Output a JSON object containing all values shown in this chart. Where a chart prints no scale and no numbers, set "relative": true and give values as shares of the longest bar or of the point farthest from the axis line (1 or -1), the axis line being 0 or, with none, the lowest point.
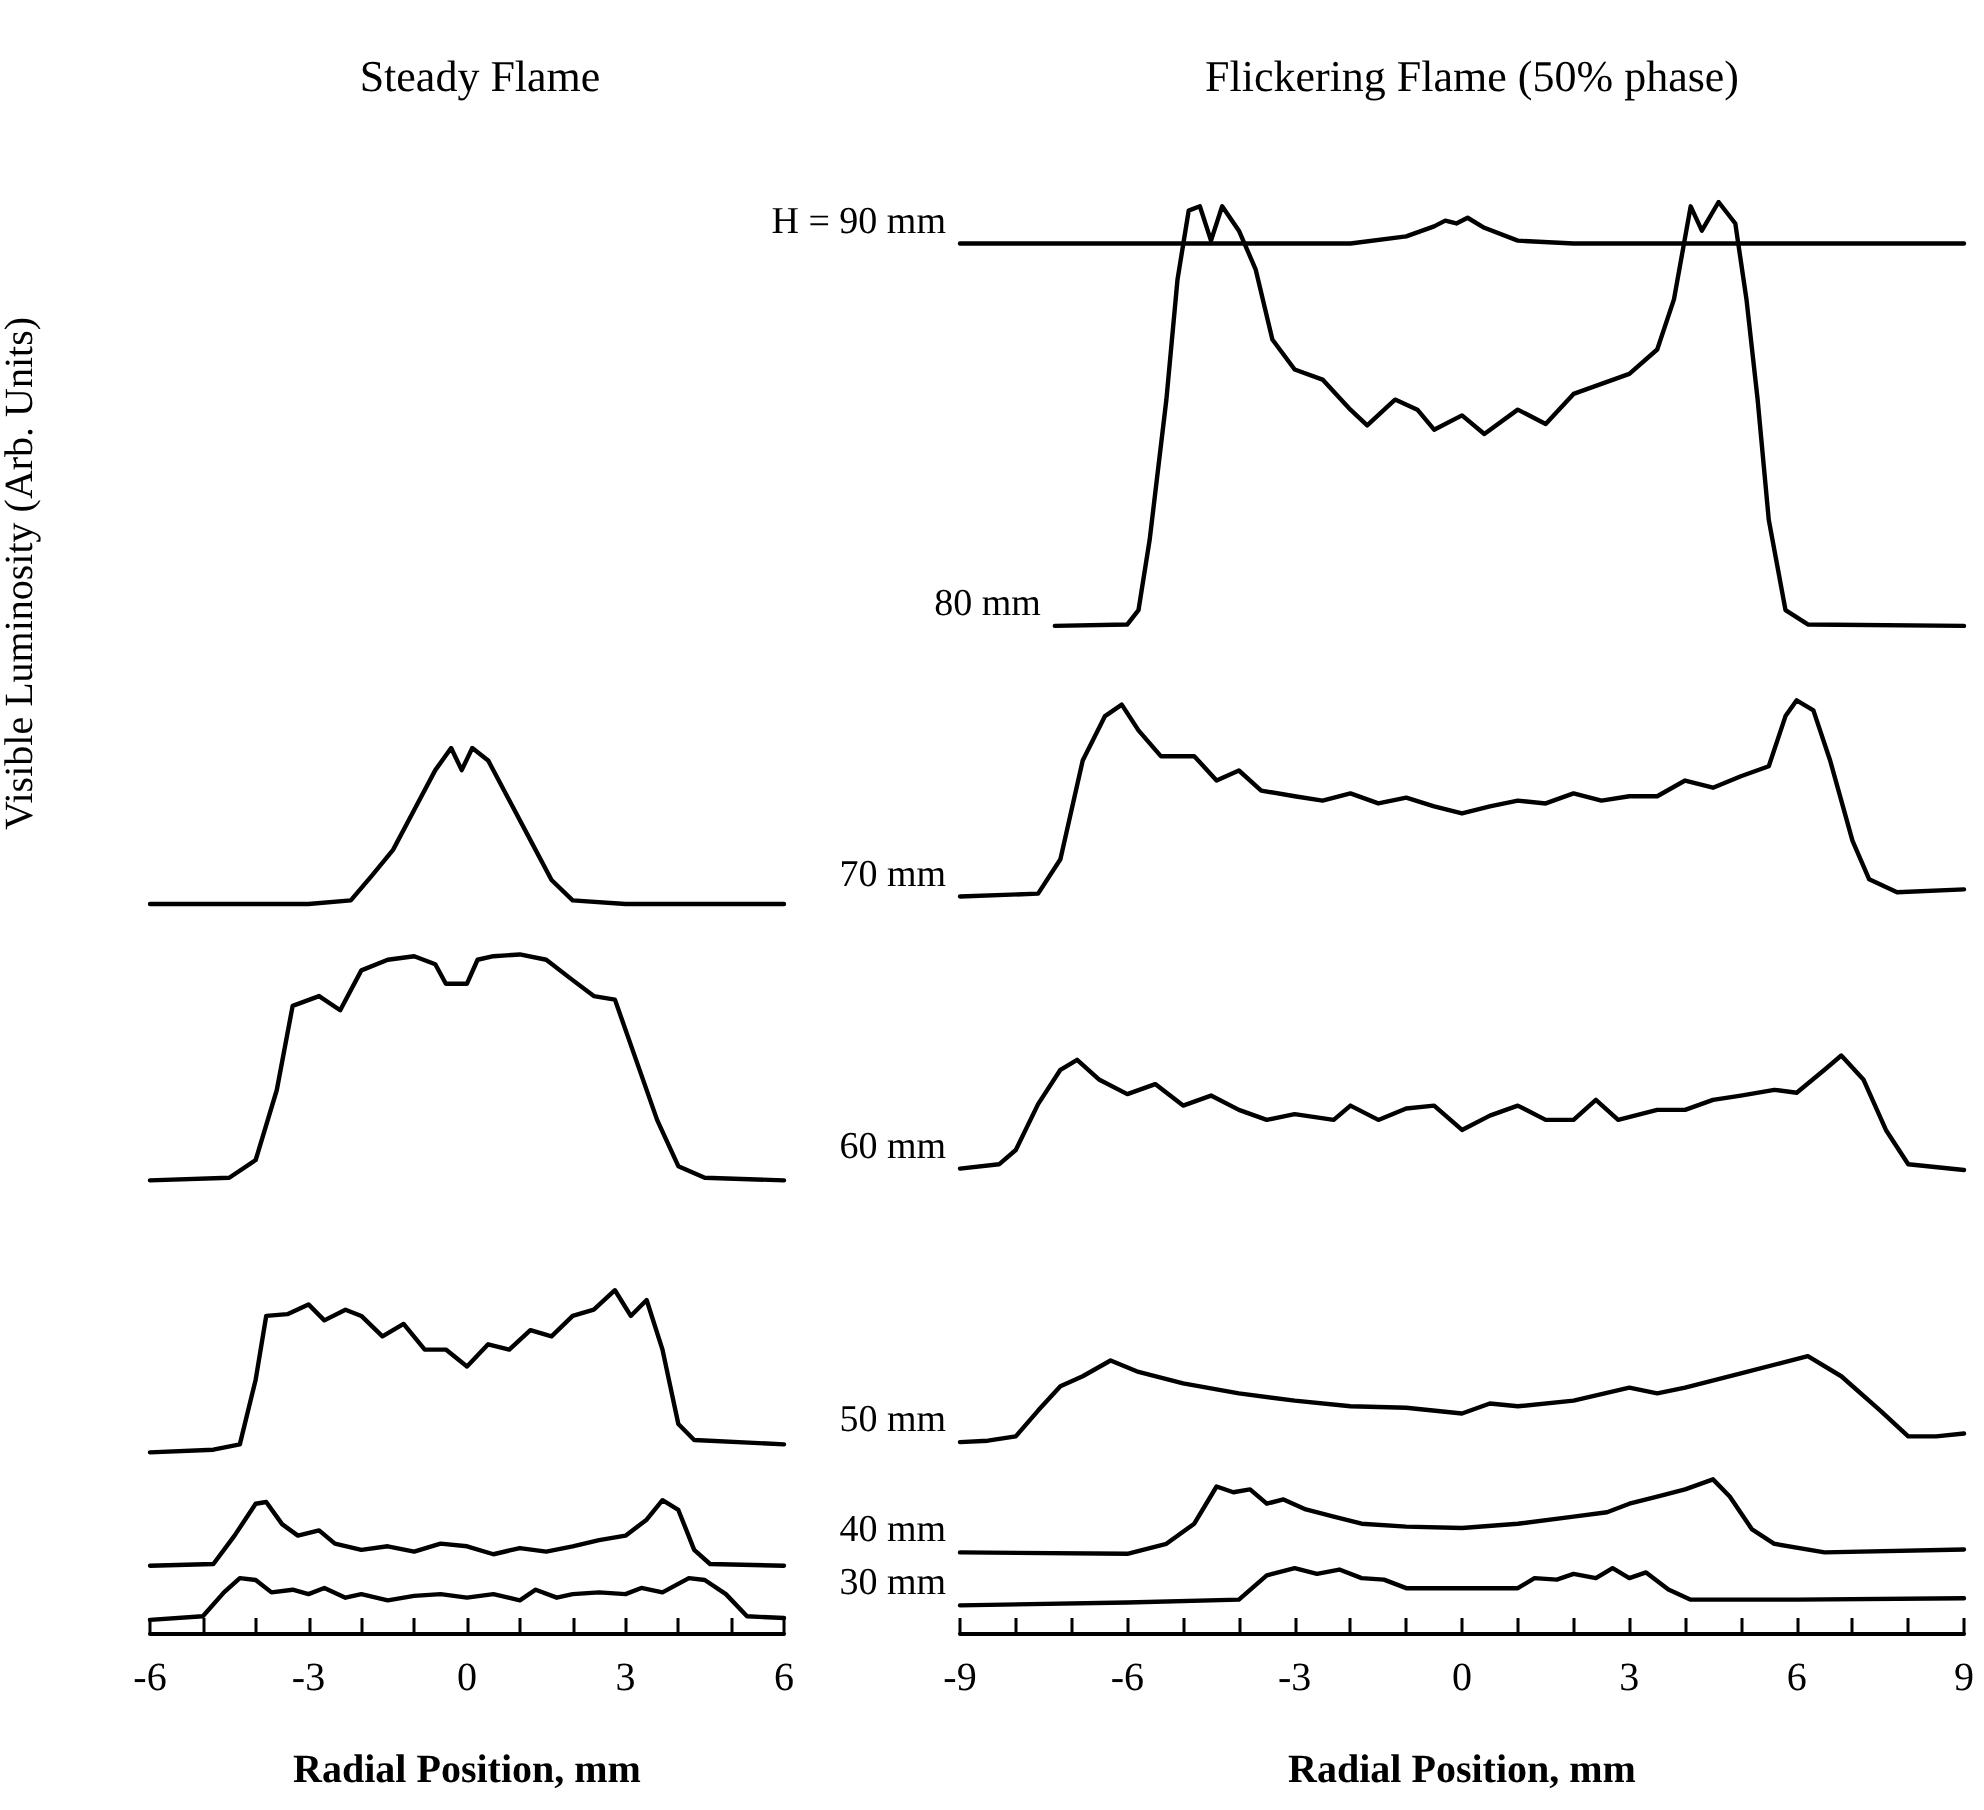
{
  "chart_data": [
    {
      "type": "line",
      "title": "Steady Flame",
      "xlabel": "Radial Position, mm",
      "ylabel": "Visible Luminosity (Arb. Units)",
      "relative": true,
      "xlim": [
        -6,
        6
      ],
      "xticks": [
        -6,
        {
          "value": -5,
          "label": null
        },
        {
          "value": -4,
          "label": null
        },
        -3,
        {
          "value": -2,
          "label": null
        },
        {
          "value": -1,
          "label": null
        },
        0,
        {
          "value": 1,
          "label": null
        },
        {
          "value": 2,
          "label": null
        },
        3,
        {
          "value": 4,
          "label": null
        },
        {
          "value": 5,
          "label": null
        },
        6
      ],
      "series": [
        {
          "color": "#000000",
          "x": [
            -6,
            -5,
            -4.6,
            -4.3,
            -4,
            -3.7,
            -3.3,
            -3,
            -2.7,
            -2.3,
            -2,
            -1.5,
            -1,
            -0.5,
            0,
            0.5,
            1,
            1.3,
            1.7,
            2,
            2.5,
            3,
            3.3,
            3.7,
            4.2,
            4.5,
            4.9,
            5.3,
            6
          ],
          "values": [
            0.016,
            0.02,
            0.047,
            0.063,
            0.061,
            0.047,
            0.05,
            0.045,
            0.052,
            0.041,
            0.045,
            0.038,
            0.043,
            0.045,
            0.041,
            0.045,
            0.038,
            0.05,
            0.041,
            0.045,
            0.047,
            0.045,
            0.052,
            0.047,
            0.063,
            0.061,
            0.045,
            0.02,
            0.018
          ]
        },
        {
          "color": "#000000",
          "x": [
            -6,
            -4.8,
            -4.4,
            -4.0,
            -3.8,
            -3.5,
            -3.2,
            -2.8,
            -2.5,
            -2,
            -1.5,
            -1,
            -0.5,
            0,
            0.5,
            1,
            1.5,
            2,
            2.5,
            3,
            3.4,
            3.7,
            4,
            4.3,
            4.6,
            6
          ],
          "values": [
            0.077,
            0.079,
            0.111,
            0.147,
            0.149,
            0.124,
            0.111,
            0.117,
            0.102,
            0.095,
            0.099,
            0.093,
            0.102,
            0.099,
            0.09,
            0.097,
            0.093,
            0.099,
            0.106,
            0.111,
            0.129,
            0.151,
            0.14,
            0.095,
            0.079,
            0.077
          ]
        },
        {
          "color": "#000000",
          "x": [
            -6,
            -4.8,
            -4.3,
            -4.0,
            -3.8,
            -3.4,
            -3,
            -2.7,
            -2.3,
            -2,
            -1.6,
            -1.2,
            -0.8,
            -0.4,
            0,
            0.4,
            0.8,
            1.2,
            1.6,
            2,
            2.4,
            2.8,
            3.1,
            3.4,
            3.7,
            4.0,
            4.3,
            6
          ],
          "values": [
            0.205,
            0.208,
            0.214,
            0.287,
            0.359,
            0.361,
            0.372,
            0.354,
            0.366,
            0.359,
            0.336,
            0.35,
            0.321,
            0.321,
            0.302,
            0.327,
            0.321,
            0.343,
            0.336,
            0.359,
            0.366,
            0.388,
            0.359,
            0.377,
            0.321,
            0.237,
            0.219,
            0.214
          ]
        },
        {
          "color": "#000000",
          "x": [
            -6,
            -4.5,
            -4.0,
            -3.6,
            -3.3,
            -2.8,
            -2.4,
            -2,
            -1.5,
            -1,
            -0.6,
            -0.4,
            0,
            0.2,
            0.5,
            1,
            1.5,
            2,
            2.4,
            2.8,
            3.2,
            3.6,
            4,
            4.5,
            6
          ],
          "values": [
            0.512,
            0.515,
            0.535,
            0.614,
            0.709,
            0.72,
            0.704,
            0.749,
            0.761,
            0.765,
            0.756,
            0.734,
            0.734,
            0.761,
            0.765,
            0.767,
            0.761,
            0.738,
            0.72,
            0.716,
            0.648,
            0.58,
            0.528,
            0.515,
            0.512
          ]
        },
        {
          "color": "#000000",
          "x": [
            -6,
            -3,
            -2.2,
            -1.8,
            -1.4,
            -1,
            -0.6,
            -0.3,
            -0.1,
            0.1,
            0.4,
            0.8,
            1.2,
            1.6,
            2,
            3,
            6
          ],
          "values": [
            0.824,
            0.824,
            0.828,
            0.856,
            0.885,
            0.93,
            0.975,
            1,
            0.975,
            1,
            0.986,
            0.941,
            0.896,
            0.851,
            0.828,
            0.824,
            0.824
          ]
        }
      ]
    },
    {
      "type": "line",
      "title": "Flickering Flame (50% phase)",
      "xlabel": "Radial Position, mm",
      "relative": true,
      "xlim": [
        -9,
        9
      ],
      "xticks": [
        -9,
        {
          "value": -8,
          "label": null
        },
        {
          "value": -7,
          "label": null
        },
        -6,
        {
          "value": -5,
          "label": null
        },
        {
          "value": -4,
          "label": null
        },
        -3,
        {
          "value": -2,
          "label": null
        },
        {
          "value": -1,
          "label": null
        },
        0,
        {
          "value": 1,
          "label": null
        },
        {
          "value": 2,
          "label": null
        },
        3,
        {
          "value": 4,
          "label": null
        },
        {
          "value": 5,
          "label": null
        },
        6,
        {
          "value": 7,
          "label": null
        },
        {
          "value": 8,
          "label": null
        },
        9
      ],
      "series": [
        {
          "name": "30 mm",
          "color": "#000000",
          "x": [
            -9,
            -6,
            -4,
            -3.5,
            -3,
            -2.6,
            -2.2,
            -1.8,
            -1.4,
            -1,
            0,
            1,
            1.3,
            1.7,
            2,
            2.4,
            2.7,
            3,
            3.3,
            3.7,
            4.1,
            6,
            9
          ],
          "values": [
            0.02,
            0.022,
            0.024,
            0.041,
            0.046,
            0.042,
            0.045,
            0.039,
            0.038,
            0.032,
            0.032,
            0.032,
            0.039,
            0.038,
            0.042,
            0.039,
            0.046,
            0.039,
            0.043,
            0.031,
            0.024,
            0.024,
            0.025
          ]
        },
        {
          "name": "40 mm",
          "color": "#000000",
          "x": [
            -9,
            -6,
            -5.3,
            -4.8,
            -4.4,
            -4.1,
            -3.8,
            -3.5,
            -3.2,
            -2.8,
            -2.3,
            -1.8,
            -1,
            0,
            1,
            2,
            2.6,
            3,
            3.5,
            4,
            4.5,
            4.8,
            5.2,
            5.6,
            6.5,
            9
          ],
          "values": [
            0.057,
            0.056,
            0.063,
            0.077,
            0.103,
            0.099,
            0.101,
            0.091,
            0.094,
            0.087,
            0.082,
            0.077,
            0.075,
            0.074,
            0.077,
            0.082,
            0.085,
            0.091,
            0.096,
            0.101,
            0.108,
            0.096,
            0.073,
            0.063,
            0.057,
            0.059
          ]
        },
        {
          "name": "50 mm",
          "color": "#000000",
          "x": [
            -9,
            -8.5,
            -8,
            -7.6,
            -7.2,
            -6.8,
            -6.3,
            -5.8,
            -5,
            -4,
            -3,
            -2,
            -1,
            0,
            0.5,
            1,
            2,
            3,
            3.5,
            4,
            5,
            5.7,
            6.2,
            6.8,
            7.5,
            8,
            8.5,
            9
          ],
          "values": [
            0.134,
            0.135,
            0.138,
            0.156,
            0.173,
            0.18,
            0.191,
            0.183,
            0.175,
            0.168,
            0.163,
            0.159,
            0.158,
            0.154,
            0.161,
            0.159,
            0.163,
            0.172,
            0.168,
            0.172,
            0.182,
            0.189,
            0.194,
            0.18,
            0.156,
            0.138,
            0.138,
            0.14
          ]
        },
        {
          "name": "60 mm",
          "color": "#000000",
          "x": [
            -9,
            -8.3,
            -8,
            -7.6,
            -7.2,
            -6.9,
            -6.5,
            -6,
            -5.5,
            -5,
            -4.5,
            -4,
            -3.5,
            -3,
            -2.3,
            -2,
            -1.5,
            -1,
            -0.5,
            0,
            0.5,
            1,
            1.5,
            2,
            2.4,
            2.8,
            3.5,
            4,
            4.5,
            5,
            5.6,
            6,
            6.5,
            6.8,
            7.2,
            7.6,
            8,
            9
          ],
          "values": [
            0.325,
            0.328,
            0.338,
            0.37,
            0.394,
            0.401,
            0.387,
            0.377,
            0.384,
            0.369,
            0.376,
            0.366,
            0.359,
            0.363,
            0.359,
            0.369,
            0.359,
            0.367,
            0.369,
            0.352,
            0.362,
            0.369,
            0.359,
            0.359,
            0.373,
            0.359,
            0.366,
            0.366,
            0.373,
            0.376,
            0.38,
            0.378,
            0.394,
            0.404,
            0.387,
            0.352,
            0.328,
            0.324
          ]
        },
        {
          "name": "70 mm",
          "color": "#000000",
          "x": [
            -9,
            -7.6,
            -7.2,
            -6.8,
            -6.4,
            -6.1,
            -5.8,
            -5.4,
            -4.8,
            -4.4,
            -4,
            -3.6,
            -3,
            -2.5,
            -2,
            -1.5,
            -1,
            -0.5,
            0,
            0.5,
            1,
            1.5,
            2,
            2.5,
            3,
            3.5,
            4,
            4.5,
            5,
            5.5,
            5.8,
            6,
            6.3,
            6.6,
            7,
            7.3,
            7.8,
            9
          ],
          "values": [
            0.515,
            0.517,
            0.541,
            0.61,
            0.641,
            0.649,
            0.631,
            0.613,
            0.613,
            0.596,
            0.603,
            0.589,
            0.585,
            0.582,
            0.587,
            0.58,
            0.584,
            0.578,
            0.573,
            0.578,
            0.582,
            0.58,
            0.587,
            0.582,
            0.585,
            0.585,
            0.596,
            0.591,
            0.599,
            0.606,
            0.641,
            0.652,
            0.645,
            0.61,
            0.554,
            0.527,
            0.518,
            0.52
          ]
        },
        {
          "name": "80 mm",
          "color": "#000000",
          "x": [
            -7.3,
            -6,
            -5.8,
            -5.6,
            -5.3,
            -5.1,
            -4.9,
            -4.7,
            -4.5,
            -4.3,
            -4.0,
            -3.7,
            -3.4,
            -3.0,
            -2.5,
            -2.0,
            -1.7,
            -1.2,
            -0.8,
            -0.5,
            0,
            0.4,
            1,
            1.5,
            2,
            2.5,
            3,
            3.5,
            3.8,
            4.1,
            4.3,
            4.6,
            4.9,
            5.1,
            5.3,
            5.5,
            5.8,
            6.2,
            9
          ],
          "values": [
            0.704,
            0.705,
            0.715,
            0.764,
            0.862,
            0.946,
            0.994,
            0.997,
            0.973,
            0.997,
            0.98,
            0.953,
            0.904,
            0.883,
            0.876,
            0.855,
            0.844,
            0.862,
            0.855,
            0.841,
            0.851,
            0.838,
            0.855,
            0.845,
            0.866,
            0.873,
            0.88,
            0.897,
            0.932,
            0.997,
            0.98,
            1,
            0.985,
            0.932,
            0.862,
            0.778,
            0.715,
            0.705,
            0.704
          ]
        },
        {
          "name": "H = 90 mm",
          "color": "#000000",
          "x": [
            -9,
            -2,
            -1,
            -0.5,
            -0.3,
            -0.1,
            0.1,
            0.4,
            1,
            2,
            9
          ],
          "values": [
            0.971,
            0.971,
            0.976,
            0.983,
            0.987,
            0.985,
            0.989,
            0.982,
            0.973,
            0.971,
            0.971
          ]
        }
      ]
    }
  ]
}
